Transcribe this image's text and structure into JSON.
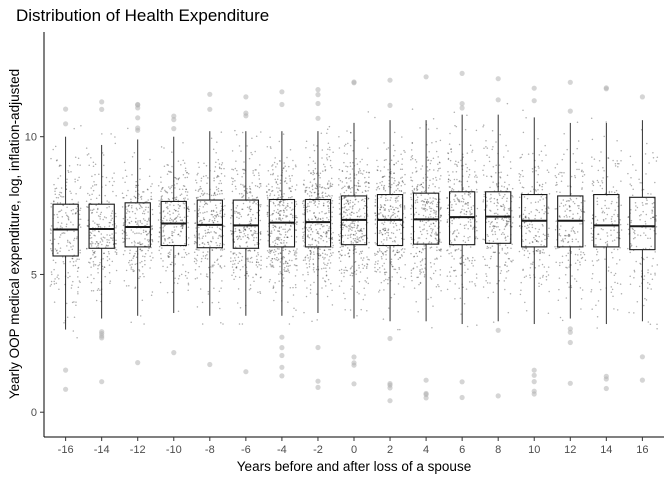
{
  "chart_data": {
    "type": "boxplot",
    "title": "Distribution of Health Expenditure",
    "xlabel": "Years before and after loss of a spouse",
    "ylabel": "Yearly OOP medical expenditure, log, inflation-adjusted",
    "xlim": [
      -17.2,
      17.2
    ],
    "ylim": [
      -0.9,
      13.8
    ],
    "x_ticks": [
      -16,
      -14,
      -12,
      -10,
      -8,
      -6,
      -4,
      -2,
      0,
      2,
      4,
      6,
      8,
      10,
      12,
      14,
      16
    ],
    "x_tick_labels": [
      "-16",
      "-14",
      "-12",
      "-10",
      "-8",
      "-6",
      "-4",
      "-2",
      "0",
      "2",
      "4",
      "6",
      "8",
      "10",
      "12",
      "14",
      "16"
    ],
    "y_ticks": [
      0,
      5,
      10
    ],
    "y_tick_labels": [
      "0",
      "5",
      "10"
    ],
    "grid": false,
    "jittered_points": true,
    "boxes": [
      {
        "x": -16,
        "q1": 5.67,
        "median": 6.63,
        "q3": 7.55,
        "whisker_low": 3.0,
        "whisker_high": 10.0
      },
      {
        "x": -14,
        "q1": 5.95,
        "median": 6.65,
        "q3": 7.55,
        "whisker_low": 3.4,
        "whisker_high": 9.7
      },
      {
        "x": -12,
        "q1": 6.0,
        "median": 6.72,
        "q3": 7.6,
        "whisker_low": 3.5,
        "whisker_high": 9.9
      },
      {
        "x": -10,
        "q1": 6.05,
        "median": 6.85,
        "q3": 7.65,
        "whisker_low": 3.6,
        "whisker_high": 10.0
      },
      {
        "x": -8,
        "q1": 5.97,
        "median": 6.8,
        "q3": 7.7,
        "whisker_low": 3.5,
        "whisker_high": 10.2
      },
      {
        "x": -6,
        "q1": 5.95,
        "median": 6.78,
        "q3": 7.7,
        "whisker_low": 3.5,
        "whisker_high": 10.2
      },
      {
        "x": -4,
        "q1": 6.0,
        "median": 6.88,
        "q3": 7.72,
        "whisker_low": 3.5,
        "whisker_high": 10.2
      },
      {
        "x": -2,
        "q1": 6.0,
        "median": 6.9,
        "q3": 7.72,
        "whisker_low": 3.6,
        "whisker_high": 10.2
      },
      {
        "x": 0,
        "q1": 6.08,
        "median": 6.98,
        "q3": 7.85,
        "whisker_low": 3.4,
        "whisker_high": 10.5
      },
      {
        "x": 2,
        "q1": 6.05,
        "median": 6.98,
        "q3": 7.9,
        "whisker_low": 3.3,
        "whisker_high": 10.6
      },
      {
        "x": 4,
        "q1": 6.1,
        "median": 7.0,
        "q3": 7.95,
        "whisker_low": 3.3,
        "whisker_high": 10.6
      },
      {
        "x": 6,
        "q1": 6.08,
        "median": 7.08,
        "q3": 8.0,
        "whisker_low": 3.2,
        "whisker_high": 10.8
      },
      {
        "x": 8,
        "q1": 6.13,
        "median": 7.1,
        "q3": 8.0,
        "whisker_low": 3.3,
        "whisker_high": 10.8
      },
      {
        "x": 10,
        "q1": 6.0,
        "median": 6.95,
        "q3": 7.9,
        "whisker_low": 3.2,
        "whisker_high": 10.7
      },
      {
        "x": 12,
        "q1": 6.0,
        "median": 6.95,
        "q3": 7.85,
        "whisker_low": 3.4,
        "whisker_high": 10.5
      },
      {
        "x": 14,
        "q1": 6.0,
        "median": 6.78,
        "q3": 7.9,
        "whisker_low": 3.2,
        "whisker_high": 10.5
      },
      {
        "x": 16,
        "q1": 5.9,
        "median": 6.75,
        "q3": 7.8,
        "whisker_low": 3.3,
        "whisker_high": 10.6
      }
    ],
    "colors": {
      "points": "#000000",
      "box_stroke": "#1a1a1a",
      "outliers": "#b3b3b3",
      "axis": "#000000",
      "tick_text": "#4d4d4d"
    }
  }
}
